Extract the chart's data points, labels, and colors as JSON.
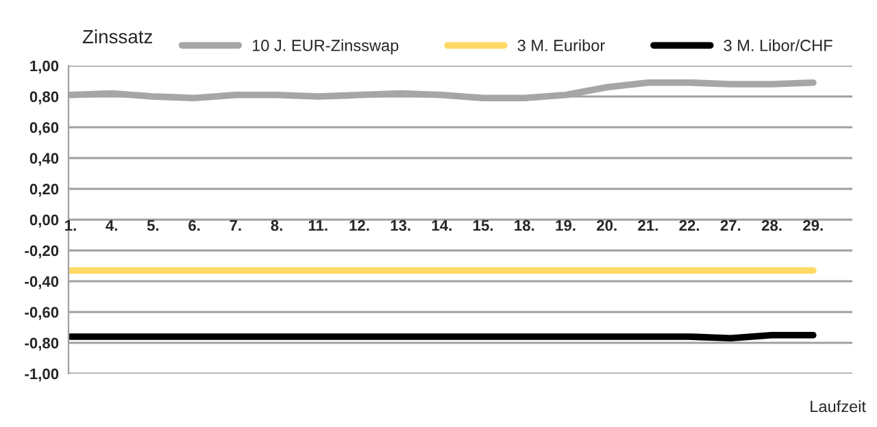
{
  "chart_data": {
    "type": "line",
    "ylabel": "Zinssatz",
    "xlabel": "Laufzeit",
    "categories": [
      "1.",
      "4.",
      "5.",
      "6.",
      "7.",
      "8.",
      "11.",
      "12.",
      "13.",
      "14.",
      "15.",
      "18.",
      "19.",
      "20.",
      "21.",
      "22.",
      "27.",
      "28.",
      "29."
    ],
    "series": [
      {
        "name": "10 J. EUR-Zinsswap",
        "color": "#a6a6a6",
        "values": [
          0.81,
          0.82,
          0.8,
          0.79,
          0.81,
          0.81,
          0.8,
          0.81,
          0.82,
          0.81,
          0.79,
          0.79,
          0.81,
          0.86,
          0.89,
          0.89,
          0.88,
          0.88,
          0.89
        ]
      },
      {
        "name": "3 M. Euribor",
        "color": "#ffd966",
        "values": [
          -0.33,
          -0.33,
          -0.33,
          -0.33,
          -0.33,
          -0.33,
          -0.33,
          -0.33,
          -0.33,
          -0.33,
          -0.33,
          -0.33,
          -0.33,
          -0.33,
          -0.33,
          -0.33,
          -0.33,
          -0.33,
          -0.33
        ]
      },
      {
        "name": "3 M. Libor/CHF",
        "color": "#000000",
        "values": [
          -0.76,
          -0.76,
          -0.76,
          -0.76,
          -0.76,
          -0.76,
          -0.76,
          -0.76,
          -0.76,
          -0.76,
          -0.76,
          -0.76,
          -0.76,
          -0.76,
          -0.76,
          -0.76,
          -0.77,
          -0.75,
          -0.75
        ]
      }
    ],
    "ylim": [
      -1.0,
      1.0
    ],
    "yticks": [
      {
        "value": -1.0,
        "label": "-1,00"
      },
      {
        "value": -0.8,
        "label": "-0,80"
      },
      {
        "value": -0.6,
        "label": "-0,60"
      },
      {
        "value": -0.4,
        "label": "-0,40"
      },
      {
        "value": -0.2,
        "label": "-0,20"
      },
      {
        "value": 0.0,
        "label": "0,00"
      },
      {
        "value": 0.2,
        "label": "0,20"
      },
      {
        "value": 0.4,
        "label": "0,40"
      },
      {
        "value": 0.6,
        "label": "0,60"
      },
      {
        "value": 0.8,
        "label": "0,80"
      },
      {
        "value": 1.0,
        "label": "1,00"
      }
    ],
    "grid": "y",
    "legend": "top",
    "marker": "none",
    "line_style": "solid"
  }
}
